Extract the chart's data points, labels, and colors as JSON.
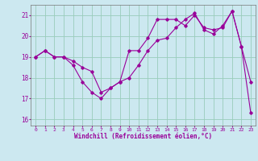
{
  "xlabel": "Windchill (Refroidissement éolien,°C)",
  "bg_color": "#cce8f0",
  "line_color": "#990099",
  "grid_color": "#99ccbb",
  "ylim": [
    15.7,
    21.5
  ],
  "xlim": [
    -0.5,
    23.5
  ],
  "yticks": [
    16,
    17,
    18,
    19,
    20,
    21
  ],
  "xticks": [
    0,
    1,
    2,
    3,
    4,
    5,
    6,
    7,
    8,
    9,
    10,
    11,
    12,
    13,
    14,
    15,
    16,
    17,
    18,
    19,
    20,
    21,
    22,
    23
  ],
  "line1_x": [
    0,
    1,
    2,
    3,
    4,
    5,
    6,
    7,
    8,
    9,
    10,
    11,
    12,
    13,
    14,
    15,
    16,
    17,
    18,
    19,
    20,
    21,
    22,
    23
  ],
  "line1_y": [
    19.0,
    19.3,
    19.0,
    19.0,
    18.6,
    17.8,
    17.3,
    17.0,
    17.5,
    17.8,
    19.3,
    19.3,
    19.9,
    20.8,
    20.8,
    20.8,
    20.5,
    21.0,
    20.4,
    20.3,
    20.4,
    21.2,
    19.5,
    17.8
  ],
  "line2_x": [
    0,
    1,
    2,
    3,
    4,
    5,
    6,
    7,
    8,
    9,
    10,
    11,
    12,
    13,
    14,
    15,
    16,
    17,
    18,
    19,
    20,
    21,
    22,
    23
  ],
  "line2_y": [
    19.0,
    19.3,
    19.0,
    19.0,
    18.8,
    18.5,
    18.3,
    17.3,
    17.5,
    17.8,
    18.0,
    18.6,
    19.3,
    19.8,
    19.9,
    20.4,
    20.8,
    21.1,
    20.3,
    20.1,
    20.5,
    21.2,
    19.5,
    16.3
  ]
}
